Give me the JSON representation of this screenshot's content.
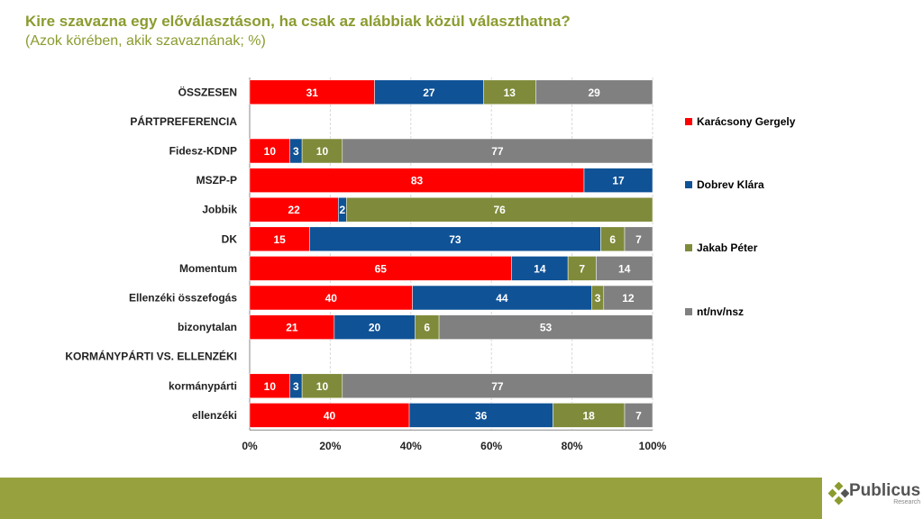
{
  "title": "Kire szavazna egy előválasztáson, ha csak az alábbiak közül választhatna?",
  "subtitle": "(Azok körében, akik szavaznának; %)",
  "logo": {
    "name": "Publicus",
    "sub": "Research"
  },
  "chart_data": {
    "type": "bar",
    "orientation": "horizontal",
    "stacked": "percent",
    "xlim": [
      0,
      100
    ],
    "xticks": [
      "0%",
      "20%",
      "40%",
      "60%",
      "80%",
      "100%"
    ],
    "grid": true,
    "legend_position": "right",
    "categories": [
      "ÖSSZESEN",
      "PÁRTPREFERENCIA",
      "Fidesz-KDNP",
      "MSZP-P",
      "Jobbik",
      "DK",
      "Momentum",
      "Ellenzéki összefogás",
      "bizonytalan",
      "KORMÁNYPÁRTI VS. ELLENZÉKI",
      "kormánypárti",
      "ellenzéki"
    ],
    "series": [
      {
        "name": "Karácsony Gergely",
        "color": "#ff0000",
        "values": [
          31,
          null,
          10,
          83,
          22,
          15,
          65,
          40,
          21,
          null,
          10,
          40
        ]
      },
      {
        "name": "Dobrev Klára",
        "color": "#0f5296",
        "values": [
          27,
          null,
          3,
          17,
          2,
          73,
          14,
          44,
          20,
          null,
          3,
          36
        ]
      },
      {
        "name": "Jakab Péter",
        "color": "#7f8b3a",
        "values": [
          13,
          null,
          10,
          null,
          76,
          6,
          7,
          3,
          6,
          null,
          10,
          18
        ]
      },
      {
        "name": "nt/nv/nsz",
        "color": "#808080",
        "values": [
          29,
          null,
          77,
          null,
          null,
          7,
          14,
          12,
          53,
          null,
          77,
          7
        ]
      }
    ]
  }
}
